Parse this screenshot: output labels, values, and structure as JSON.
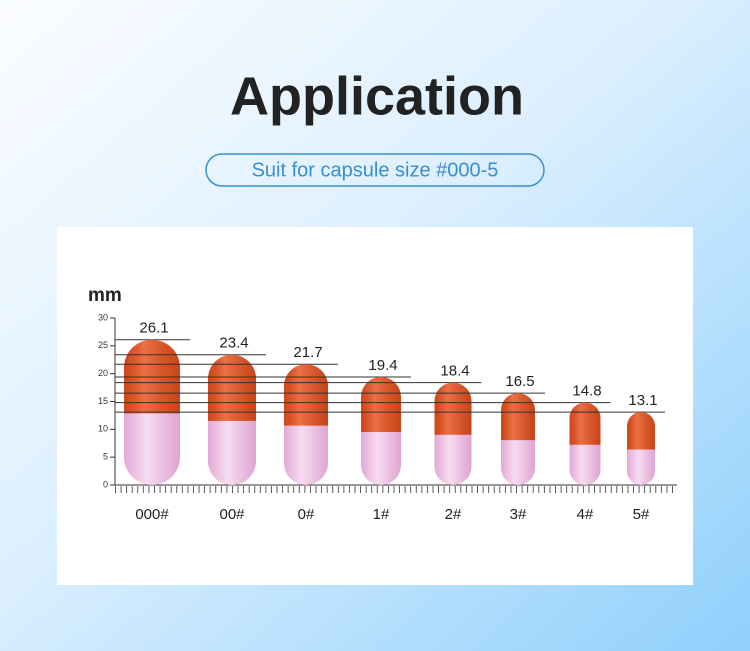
{
  "chart_data": {
    "type": "capsule",
    "title": "Application",
    "subtitle": "Suit for capsule size #000-5",
    "y_label": "mm",
    "categories": [
      "000#",
      "00#",
      "0#",
      "1#",
      "2#",
      "3#",
      "4#",
      "5#"
    ],
    "values": [
      26.1,
      23.4,
      21.7,
      19.4,
      18.4,
      16.5,
      14.8,
      13.1
    ],
    "color": "#e9501c",
    "ylim": [
      0,
      30
    ],
    "yticks": [
      0,
      5,
      10,
      15,
      20,
      25,
      30
    ]
  }
}
